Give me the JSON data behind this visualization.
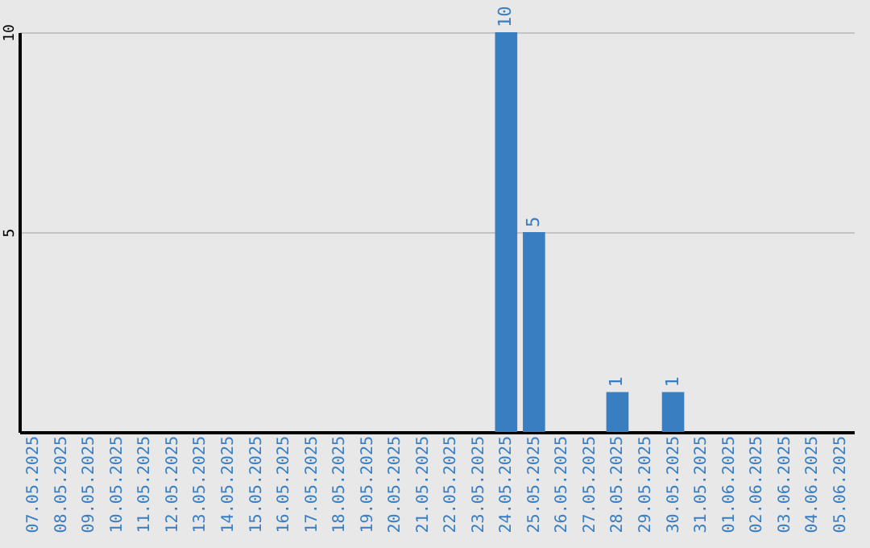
{
  "chart_data": {
    "type": "bar",
    "categories": [
      "07.05.2025",
      "08.05.2025",
      "09.05.2025",
      "10.05.2025",
      "11.05.2025",
      "12.05.2025",
      "13.05.2025",
      "14.05.2025",
      "15.05.2025",
      "16.05.2025",
      "17.05.2025",
      "18.05.2025",
      "19.05.2025",
      "20.05.2025",
      "21.05.2025",
      "22.05.2025",
      "23.05.2025",
      "24.05.2025",
      "25.05.2025",
      "26.05.2025",
      "27.05.2025",
      "28.05.2025",
      "29.05.2025",
      "30.05.2025",
      "31.05.2025",
      "01.06.2025",
      "02.06.2025",
      "03.06.2025",
      "04.06.2025",
      "05.06.2025"
    ],
    "values": [
      0,
      0,
      0,
      0,
      0,
      0,
      0,
      0,
      0,
      0,
      0,
      0,
      0,
      0,
      0,
      0,
      0,
      10,
      5,
      0,
      0,
      1,
      0,
      1,
      0,
      0,
      0,
      0,
      0,
      0
    ],
    "value_labels": [
      null,
      null,
      null,
      null,
      null,
      null,
      null,
      null,
      null,
      null,
      null,
      null,
      null,
      null,
      null,
      null,
      null,
      "10",
      "5",
      null,
      null,
      "1",
      null,
      "1",
      null,
      null,
      null,
      null,
      null,
      null
    ],
    "color": "#3a7ec2",
    "ylim": [
      0,
      10
    ],
    "yticks": [
      5,
      10
    ],
    "grid": "y"
  }
}
